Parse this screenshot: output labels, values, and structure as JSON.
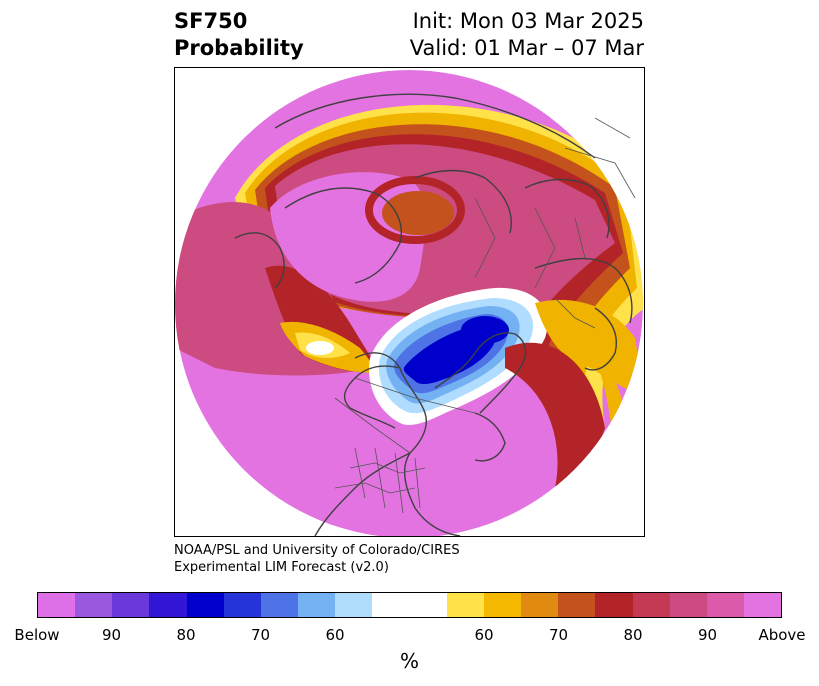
{
  "header": {
    "left_line1": "SF750",
    "left_line2": "Probability",
    "right_line1": "Init: Mon 03 Mar 2025",
    "right_line2": "Valid: 01 Mar – 07 Mar"
  },
  "credit": {
    "line1": "NOAA/PSL and University of Colorado/CIRES",
    "line2": "Experimental LIM Forecast (v2.0)"
  },
  "map": {
    "projection": "north-polar-stereographic",
    "features": [
      "coastlines",
      "country-borders",
      "us-state-borders"
    ],
    "colors": {
      "below_high": "#e373e0",
      "below_mid": "#3a1fd6",
      "below_core": "#0000cc",
      "below_low": "#aedcff",
      "neutral": "#ffffff",
      "above_low": "#ffe14a",
      "above_mid": "#f0b300",
      "above_orange": "#c4521c",
      "above_red": "#b32428",
      "above_pink": "#cc4b80",
      "above_high": "#e373e0"
    }
  },
  "colorbar": {
    "colors": [
      "#de6fe6",
      "#9a57e0",
      "#6b38dc",
      "#3317d6",
      "#0000cc",
      "#2633d9",
      "#4d73e6",
      "#74b1f2",
      "#afdcfd",
      "#ffffff",
      "#ffffff",
      "#ffe14a",
      "#f5b800",
      "#e08a12",
      "#c4521c",
      "#b32428",
      "#c43a55",
      "#cc4b80",
      "#dc5aaa",
      "#e373e0"
    ],
    "tick_labels": [
      "Below",
      "90",
      "80",
      "70",
      "60",
      "60",
      "70",
      "80",
      "90",
      "Above"
    ],
    "unit_label": "%"
  }
}
